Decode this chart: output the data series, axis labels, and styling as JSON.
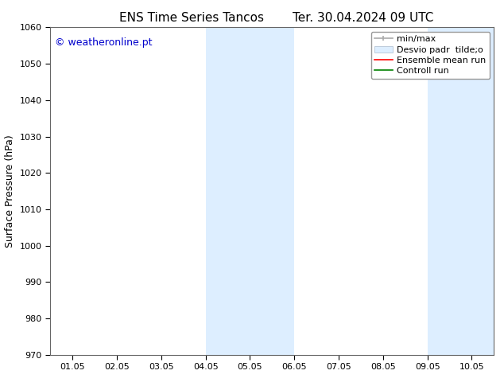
{
  "title_left": "ENS Time Series Tancos",
  "title_right": "Ter. 30.04.2024 09 UTC",
  "ylabel": "Surface Pressure (hPa)",
  "ylim": [
    970,
    1060
  ],
  "yticks": [
    970,
    980,
    990,
    1000,
    1010,
    1020,
    1030,
    1040,
    1050,
    1060
  ],
  "xtick_labels": [
    "01.05",
    "02.05",
    "03.05",
    "04.05",
    "05.05",
    "06.05",
    "07.05",
    "08.05",
    "09.05",
    "10.05"
  ],
  "shaded_bands": [
    {
      "xstart": 3.0,
      "xend": 5.0
    },
    {
      "xstart": 8.0,
      "xend": 10.0
    }
  ],
  "shaded_color": "#ddeeff",
  "watermark": "© weatheronline.pt",
  "watermark_color": "#0000cc",
  "watermark_fontsize": 9,
  "legend_minmax_color": "#aaaaaa",
  "legend_desvio_color": "#ddeeff",
  "legend_ensemble_color": "red",
  "legend_controll_color": "green",
  "bg_color": "#ffffff",
  "title_fontsize": 11,
  "ylabel_fontsize": 9,
  "tick_fontsize": 8,
  "legend_fontsize": 8
}
